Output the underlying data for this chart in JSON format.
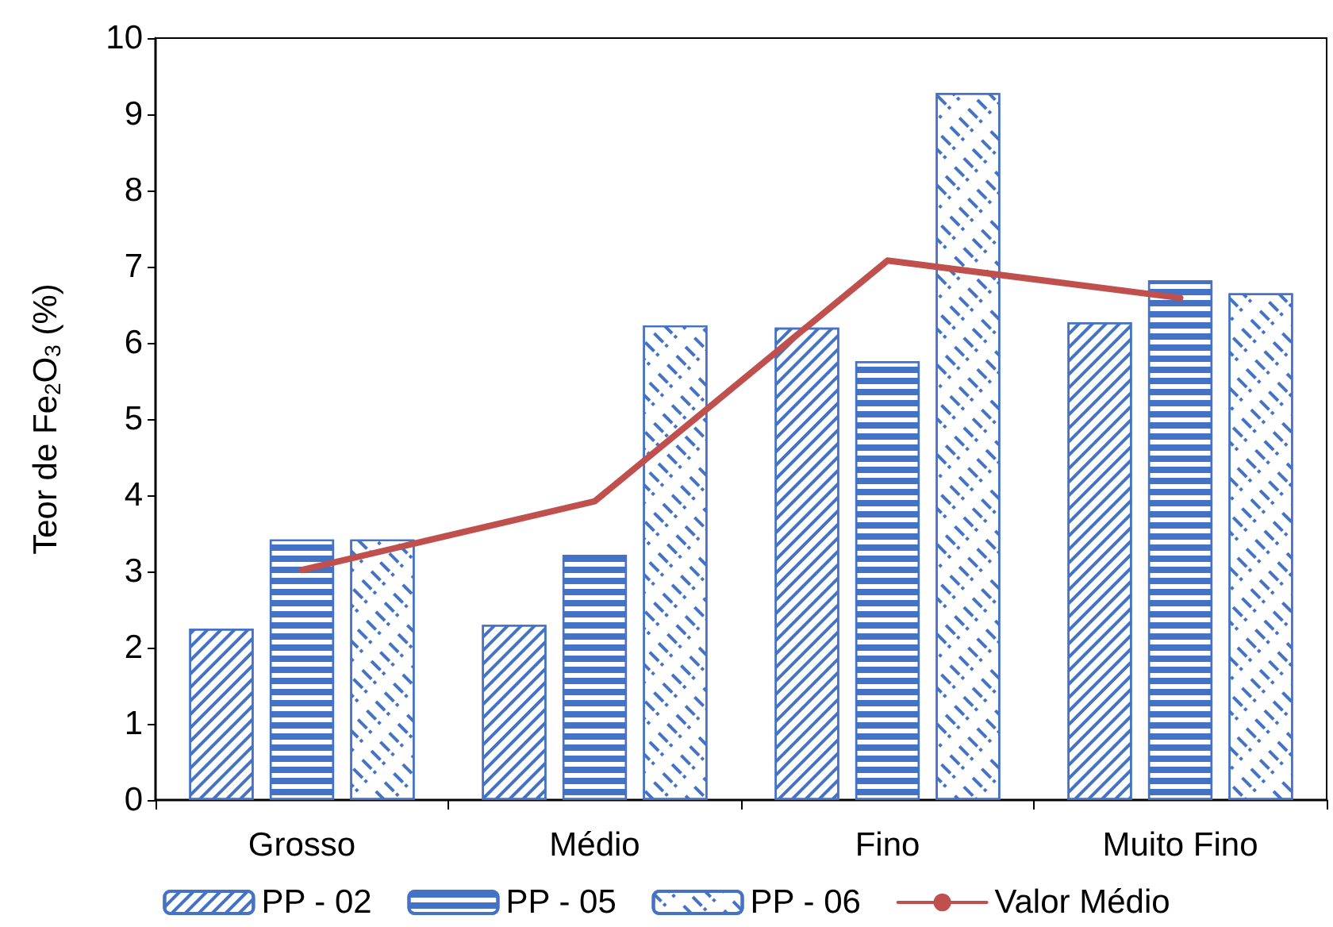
{
  "chart_data": {
    "type": "bar",
    "categories": [
      "Grosso",
      "Médio",
      "Fino",
      "Muito Fino"
    ],
    "ylabel": "Teor de Fe$_{2}$O$_{3}$ (%)",
    "series": [
      {
        "name": "PP - 02",
        "color": "#4472c4",
        "values": [
          2.25,
          2.3,
          6.2,
          6.27
        ]
      },
      {
        "name": "PP - 05",
        "color": "#4472c4",
        "values": [
          3.42,
          3.22,
          5.76,
          6.82
        ]
      },
      {
        "name": "PP - 06",
        "color": "#4472c4",
        "values": [
          3.42,
          6.23,
          9.28,
          6.65
        ]
      },
      {
        "name": "Valor Médio",
        "type": "line",
        "color": "#c0504d",
        "marker": "none",
        "values": [
          3.02,
          3.92,
          7.08,
          6.59
        ]
      }
    ],
    "ylim": [
      0,
      10
    ],
    "yticks": [
      0,
      1,
      2,
      3,
      4,
      5,
      6,
      7,
      8,
      9,
      10
    ],
    "grid": false,
    "legend": "bottom"
  }
}
